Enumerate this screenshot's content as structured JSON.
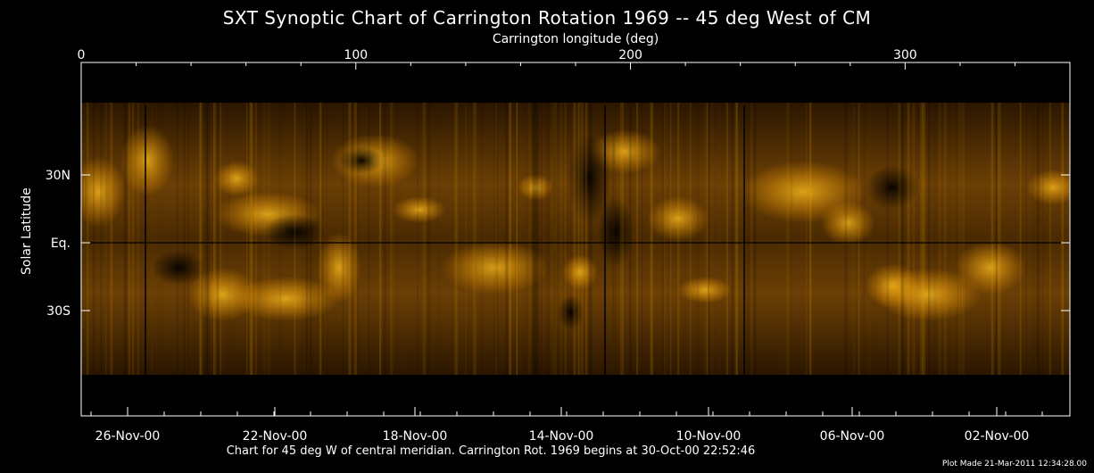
{
  "title": "SXT Synoptic Chart of Carrington Rotation 1969 -- 45 deg West of CM",
  "x_top_label": "Carrington longitude (deg)",
  "y_label": "Solar Latitude",
  "footer": "Chart for 45 deg W of central meridian.  Carrington Rot. 1969 begins at 30-Oct-00 22:52:46",
  "plot_made": "Plot Made 21-Mar-2011 12:34:28.00",
  "colors": {
    "background": "#000000",
    "frame": "#ffffff",
    "map_dark": "#1a0f00",
    "map_bright": "#ffb000"
  },
  "chart_data": {
    "type": "heatmap",
    "title": "SXT Synoptic Chart of Carrington Rotation 1969 -- 45 deg West of CM",
    "xlabel": "Carrington longitude (deg)",
    "ylabel": "Solar Latitude",
    "xlim": [
      0,
      360
    ],
    "top_ticks": [
      0,
      100,
      200,
      300
    ],
    "lat_ticks": [
      {
        "value": 30,
        "label": "30N"
      },
      {
        "value": 0,
        "label": "Eq."
      },
      {
        "value": -30,
        "label": "30S"
      }
    ],
    "date_ticks": [
      "26-Nov-00",
      "22-Nov-00",
      "18-Nov-00",
      "14-Nov-00",
      "10-Nov-00",
      "06-Nov-00",
      "02-Nov-00"
    ],
    "carrington_rotation": 1969,
    "rotation_start": "30-Oct-00 22:52:46",
    "grid": false
  }
}
